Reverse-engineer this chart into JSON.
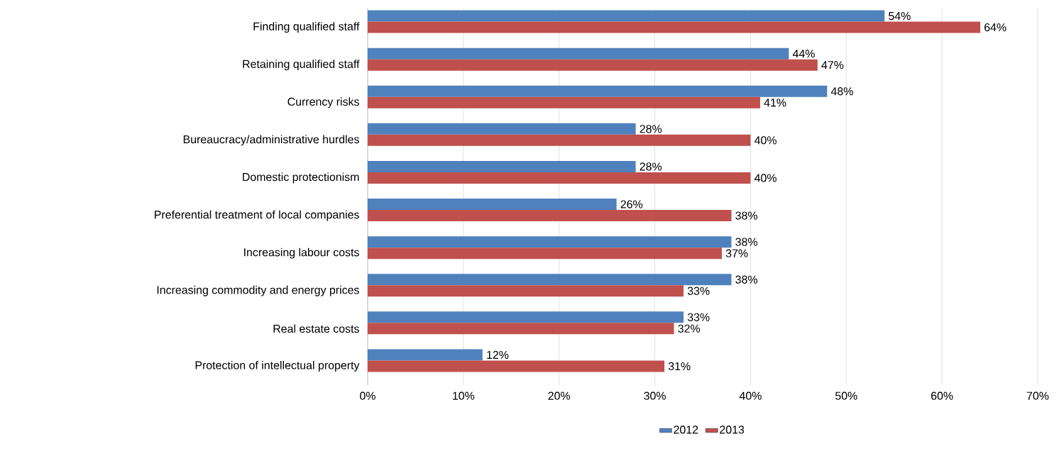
{
  "chart_data": {
    "type": "bar",
    "orientation": "horizontal",
    "categories": [
      "Finding qualified staff",
      "Retaining qualified staff",
      "Currency risks",
      "Bureaucracy/administrative hurdles",
      "Domestic protectionism",
      "Preferential treatment of local companies",
      "Increasing labour costs",
      "Increasing commodity and energy prices",
      "Real estate costs",
      "Protection of intellectual property"
    ],
    "series": [
      {
        "name": "2012",
        "color": "#4f81bd",
        "values": [
          54,
          44,
          48,
          28,
          28,
          26,
          38,
          38,
          33,
          12
        ],
        "value_labels": [
          "54%",
          "44%",
          "48%",
          "28%",
          "28%",
          "26%",
          "38%",
          "38%",
          "33%",
          "12%"
        ]
      },
      {
        "name": "2013",
        "color": "#c0504d",
        "values": [
          64,
          47,
          41,
          40,
          40,
          38,
          37,
          33,
          32,
          31
        ],
        "value_labels": [
          "64%",
          "47%",
          "41%",
          "40%",
          "40%",
          "38%",
          "37%",
          "33%",
          "32%",
          "31%"
        ]
      }
    ],
    "xlim": [
      0,
      70
    ],
    "xticks": [
      {
        "value": 0,
        "label": "0%"
      },
      {
        "value": 10,
        "label": "10%"
      },
      {
        "value": 20,
        "label": "20%"
      },
      {
        "value": 30,
        "label": "30%"
      },
      {
        "value": 40,
        "label": "40%"
      },
      {
        "value": 50,
        "label": "50%"
      },
      {
        "value": 60,
        "label": "60%"
      },
      {
        "value": 70,
        "label": "70%"
      }
    ],
    "grid": "x",
    "legend": "bottom"
  }
}
